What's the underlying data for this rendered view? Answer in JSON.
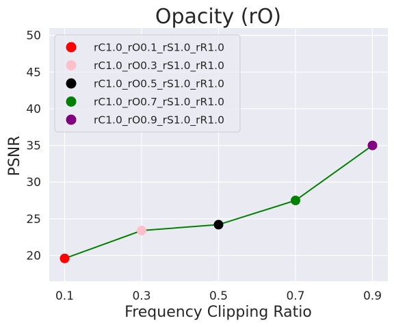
{
  "chart_data": {
    "type": "line",
    "title": "Opacity (rO)",
    "xlabel": "Frequency Clipping Ratio",
    "ylabel": "PSNR",
    "x": [
      0.1,
      0.3,
      0.5,
      0.7,
      0.9
    ],
    "x_tick_labels": [
      "0.1",
      "0.3",
      "0.5",
      "0.7",
      "0.9"
    ],
    "xlim": [
      0.06,
      0.94
    ],
    "ylim": [
      16.5,
      51.0
    ],
    "y_ticks": [
      20,
      25,
      30,
      35,
      40,
      45,
      50
    ],
    "y_tick_labels": [
      "20",
      "25",
      "30",
      "35",
      "40",
      "45",
      "50"
    ],
    "grid": true,
    "legend_position": "top-left",
    "line_color": "#008000",
    "points": [
      {
        "label": "rC1.0_rO0.1_rS1.0_rR1.0",
        "x": 0.1,
        "y": 19.6,
        "color": "#ff0000"
      },
      {
        "label": "rC1.0_rO0.3_rS1.0_rR1.0",
        "x": 0.3,
        "y": 23.4,
        "color": "#ffc0cb"
      },
      {
        "label": "rC1.0_rO0.5_rS1.0_rR1.0",
        "x": 0.5,
        "y": 24.2,
        "color": "#000000"
      },
      {
        "label": "rC1.0_rO0.7_rS1.0_rR1.0",
        "x": 0.7,
        "y": 27.5,
        "color": "#008000"
      },
      {
        "label": "rC1.0_rO0.9_rS1.0_rR1.0",
        "x": 0.9,
        "y": 35.0,
        "color": "#800080"
      }
    ]
  }
}
